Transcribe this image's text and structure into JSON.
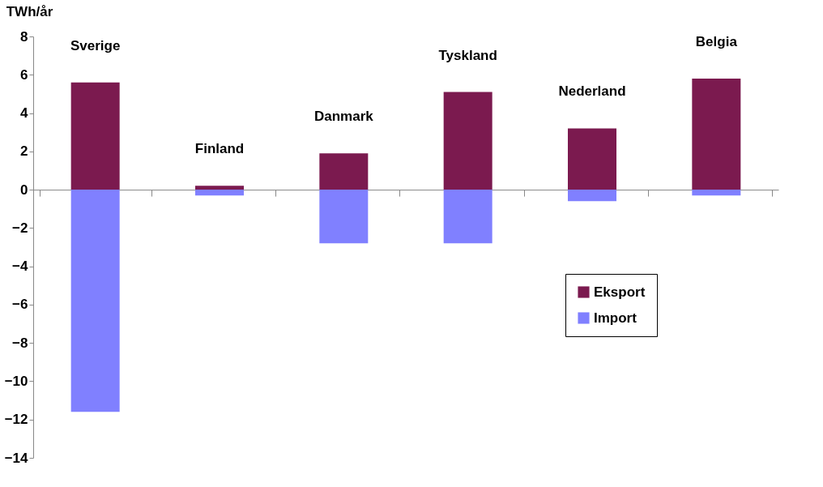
{
  "chart_data": {
    "type": "bar",
    "stacked": true,
    "ylabel": "TWh/år",
    "categories": [
      "Sverige",
      "Finland",
      "Danmark",
      "Tyskland",
      "Nederland",
      "Belgia"
    ],
    "series": [
      {
        "name": "Eksport",
        "color": "#7b1a4f",
        "values": [
          5.6,
          0.2,
          1.9,
          5.1,
          3.2,
          5.8
        ]
      },
      {
        "name": "Import",
        "color": "#8080ff",
        "values": [
          -11.6,
          -0.3,
          -2.8,
          -2.8,
          -0.6,
          -0.3
        ]
      }
    ],
    "ylim": [
      -14,
      8
    ],
    "yticks": [
      -14,
      -12,
      -10,
      -8,
      -6,
      -4,
      -2,
      0,
      2,
      4,
      6,
      8
    ],
    "legend": "bottom right"
  }
}
